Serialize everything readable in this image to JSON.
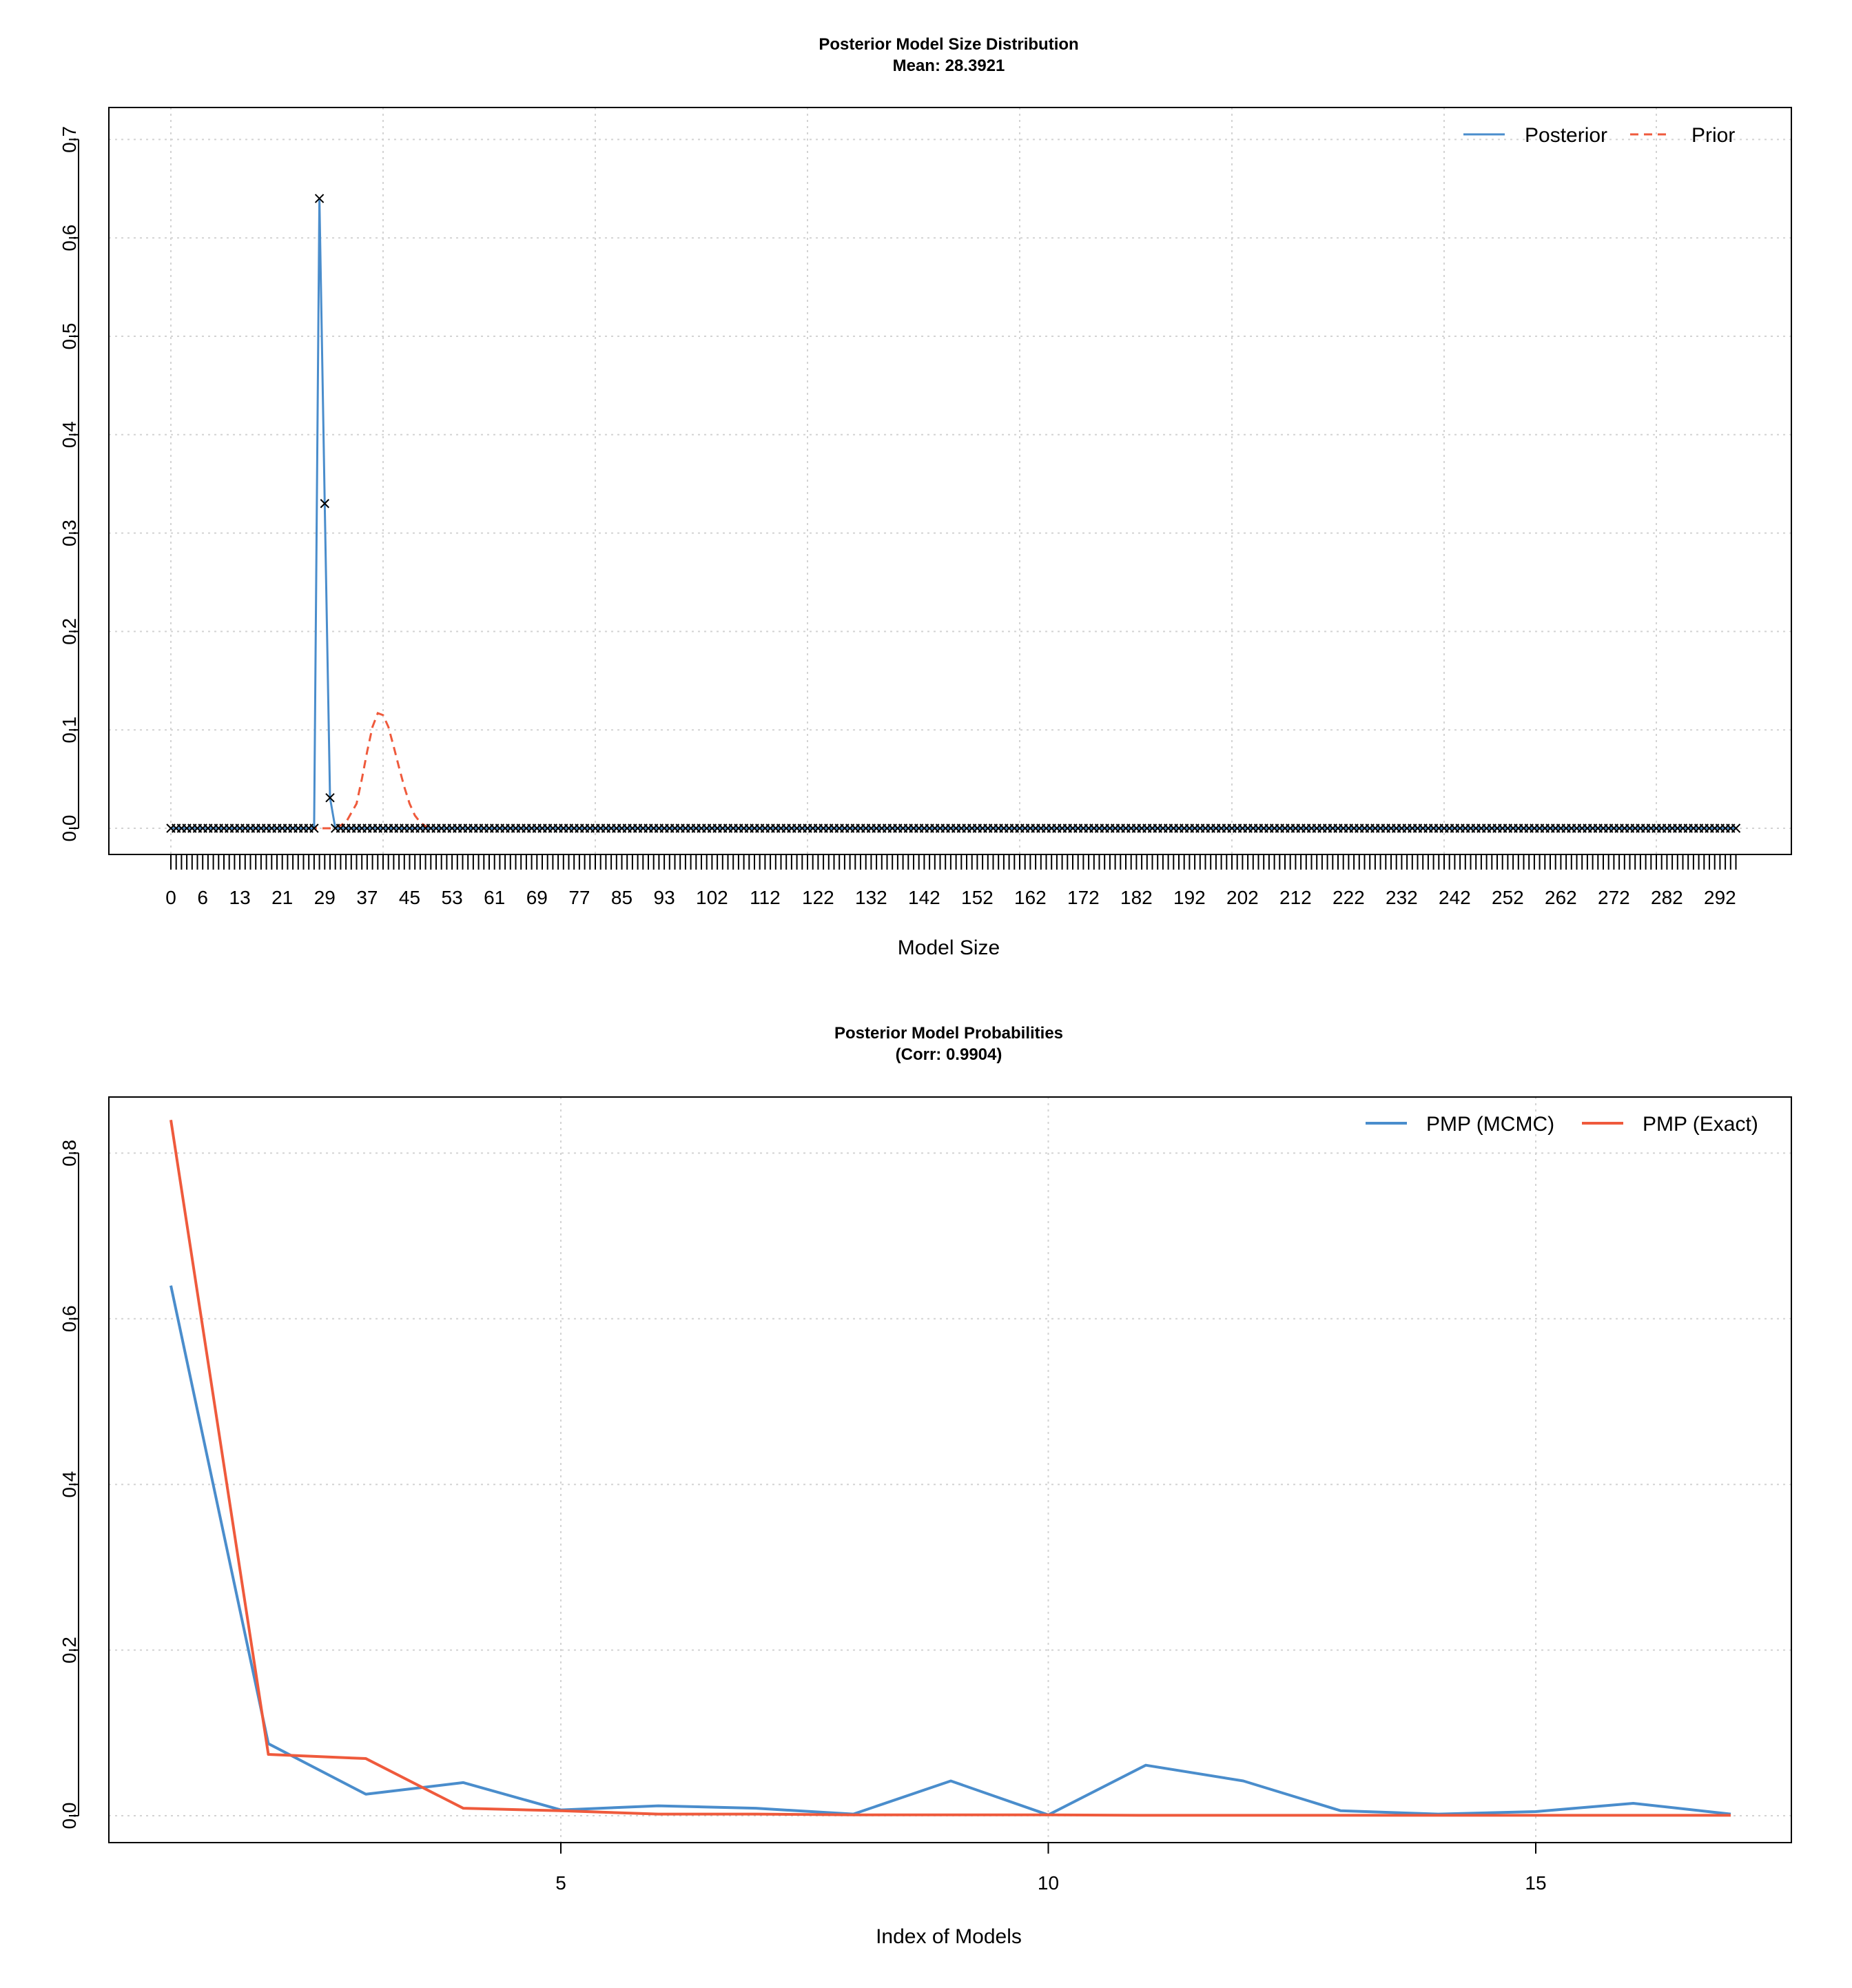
{
  "chart_data": [
    {
      "type": "line",
      "title": "Posterior Model Size Distribution",
      "subtitle": "Mean: 28.3921",
      "xlabel": "Model Size",
      "ylabel": "",
      "xlim": [
        0,
        295
      ],
      "ylim": [
        0,
        0.7
      ],
      "yticks": [
        0.0,
        0.1,
        0.2,
        0.3,
        0.4,
        0.5,
        0.6,
        0.7
      ],
      "ytick_labels": [
        "0.0",
        "0.1",
        "0.2",
        "0.3",
        "0.4",
        "0.5",
        "0.6",
        "0.7"
      ],
      "xtick_labels": [
        0,
        6,
        13,
        21,
        29,
        37,
        45,
        53,
        61,
        69,
        77,
        85,
        93,
        102,
        112,
        122,
        132,
        142,
        152,
        162,
        172,
        182,
        192,
        202,
        212,
        222,
        232,
        242,
        252,
        262,
        272,
        282,
        292
      ],
      "grid": true,
      "legend_position": "top-right",
      "legend": [
        "Posterior",
        "Prior"
      ],
      "colors": {
        "posterior": "#4A8DCC",
        "prior": "#EF5A3C",
        "marker": "#000000"
      },
      "posterior_nonzero": [
        [
          27,
          0
        ],
        [
          28,
          0.64
        ],
        [
          29,
          0.33
        ],
        [
          30,
          0.031
        ],
        [
          31,
          0
        ]
      ],
      "prior_curve": [
        [
          29,
          0
        ],
        [
          31,
          0.0
        ],
        [
          33,
          0.006
        ],
        [
          35,
          0.025
        ],
        [
          36,
          0.05
        ],
        [
          37,
          0.078
        ],
        [
          38,
          0.103
        ],
        [
          39,
          0.117
        ],
        [
          40,
          0.115
        ],
        [
          41,
          0.103
        ],
        [
          42,
          0.083
        ],
        [
          43,
          0.062
        ],
        [
          44,
          0.042
        ],
        [
          45,
          0.025
        ],
        [
          46,
          0.013
        ],
        [
          47,
          0.006
        ],
        [
          48,
          0.002
        ],
        [
          49,
          0.0
        ]
      ],
      "posterior_point_markers": [
        [
          28,
          0.64
        ],
        [
          29,
          0.33
        ],
        [
          30,
          0.031
        ]
      ],
      "size_max": 295
    },
    {
      "type": "line",
      "title": "Posterior Model Probabilities",
      "subtitle": "(Corr: 0.9904)",
      "xlabel": "Index of Models",
      "ylabel": "",
      "xlim": [
        0.6,
        17.9
      ],
      "ylim": [
        -0.033,
        0.867
      ],
      "xticks": [
        5,
        10,
        15
      ],
      "yticks": [
        0.0,
        0.2,
        0.4,
        0.6,
        0.8
      ],
      "ytick_labels": [
        "0.0",
        "0.2",
        "0.4",
        "0.6",
        "0.8"
      ],
      "grid": true,
      "legend_position": "top-right",
      "x": [
        1,
        2,
        3,
        4,
        5,
        6,
        7,
        8,
        9,
        10,
        11,
        12,
        13,
        14,
        15,
        16,
        17
      ],
      "series": [
        {
          "name": "PMP (MCMC)",
          "color": "#4A8DCC",
          "values": [
            0.64,
            0.087,
            0.026,
            0.04,
            0.007,
            0.012,
            0.009,
            0.002,
            0.042,
            0.001,
            0.061,
            0.042,
            0.006,
            0.002,
            0.005,
            0.015,
            0.002
          ]
        },
        {
          "name": "PMP (Exact)",
          "color": "#EF5A3C",
          "values": [
            0.84,
            0.074,
            0.069,
            0.009,
            0.006,
            0.002,
            0.002,
            0.001,
            0.001,
            0.001,
            0.0005,
            0.0005,
            0.0005,
            0.0005,
            0.0005,
            0.0005,
            0.0005
          ]
        }
      ]
    }
  ]
}
